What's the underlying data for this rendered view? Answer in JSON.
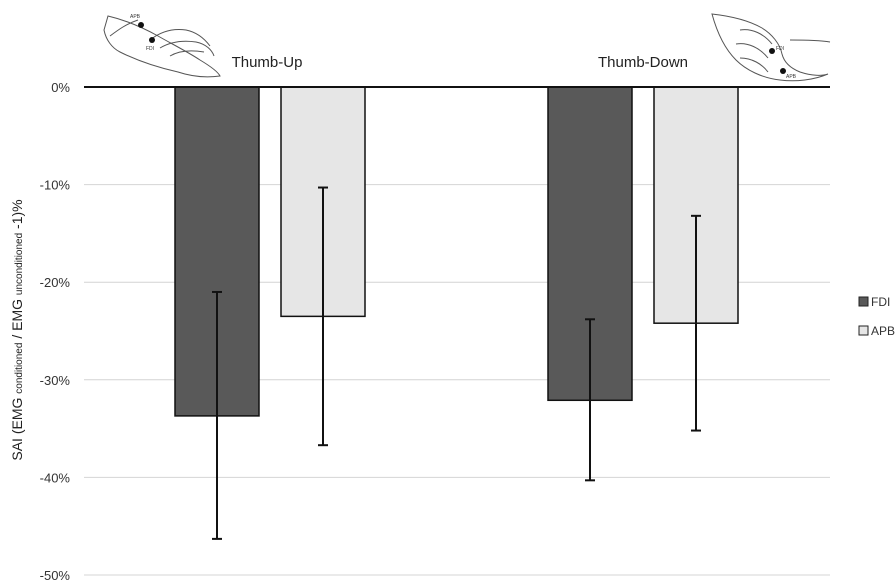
{
  "chart_data": {
    "type": "bar",
    "categories": [
      "Thumb-Up",
      "Thumb-Down"
    ],
    "series": [
      {
        "name": "FDI",
        "values": [
          -33.7,
          -32.1
        ],
        "error_low": [
          -46.3,
          -40.3
        ],
        "error_high": [
          -21.0,
          -23.8
        ],
        "color": "#595959"
      },
      {
        "name": "APB",
        "values": [
          -23.5,
          -24.2
        ],
        "error_low": [
          -36.7,
          -35.2
        ],
        "error_high": [
          -10.3,
          -13.2
        ],
        "color": "#e6e6e6"
      }
    ],
    "ylabel": {
      "prefix": "SAI (EMG ",
      "sub1": "conditioned",
      "middle": " / EMG ",
      "sub2": "unconditioned",
      "suffix": " -1)%"
    },
    "ylim": [
      -50,
      0
    ],
    "yticks": [
      0,
      -10,
      -20,
      -30,
      -40,
      -50
    ],
    "ytick_labels": [
      "0%",
      "-10%",
      "-20%",
      "-30%",
      "-40%",
      "-50%"
    ],
    "grid": true,
    "legend_position": "right",
    "hand_labels": {
      "thumb_up": [
        "APB",
        "FDI"
      ],
      "thumb_down": [
        "FDI",
        "APB"
      ]
    }
  }
}
